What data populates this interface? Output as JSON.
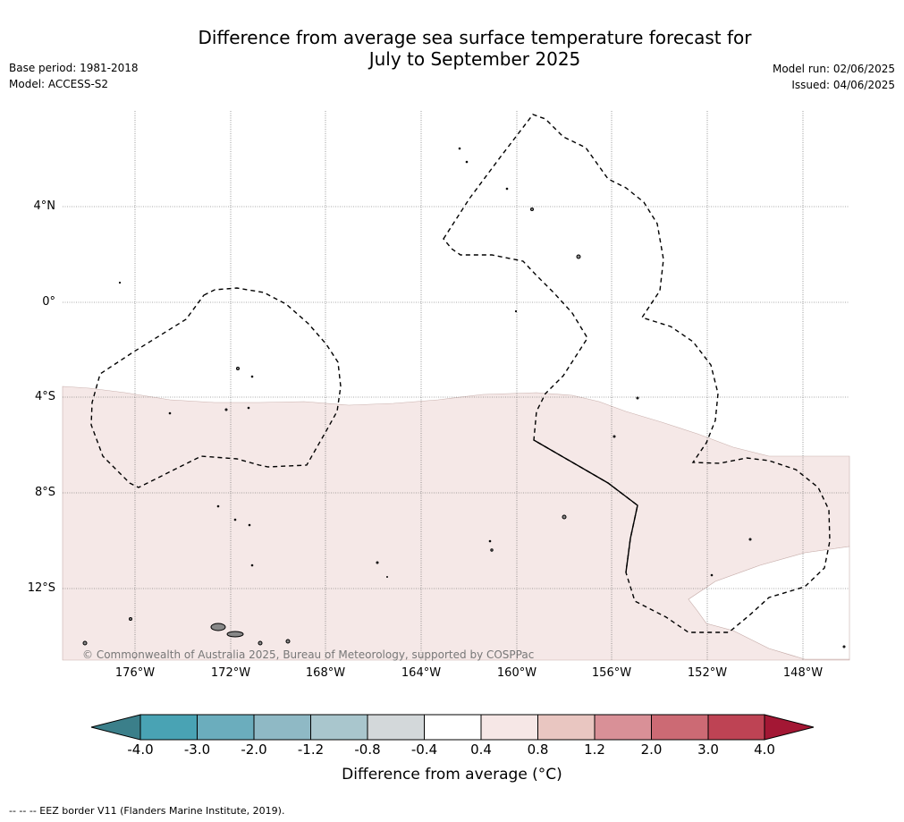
{
  "title_line1": "Difference from average sea surface temperature forecast for",
  "title_line2": "July to September 2025",
  "base_period": "Base period: 1981-2018",
  "model": "Model: ACCESS-S2",
  "model_run": "Model run: 02/06/2025",
  "issued": "Issued: 04/06/2025",
  "lat_labels": [
    "4°N",
    "0°",
    "4°S",
    "8°S",
    "12°S"
  ],
  "lon_labels": [
    "176°W",
    "172°W",
    "168°W",
    "164°W",
    "160°W",
    "156°W",
    "152°W",
    "148°W"
  ],
  "copyright": "© Commonwealth of Australia 2025, Bureau of Meteorology, supported by COSPPac",
  "colorbar": {
    "title": "Difference from average (°C)",
    "ticks": [
      "-4.0",
      "-3.0",
      "-2.0",
      "-1.2",
      "-0.8",
      "-0.4",
      "0.4",
      "0.8",
      "1.2",
      "2.0",
      "3.0",
      "4.0"
    ],
    "colors": [
      "#49a3b4",
      "#6badbd",
      "#8fb9c5",
      "#a9c6cd",
      "#d3d8da",
      "#ffffff",
      "#f6e7e6",
      "#e9c6c1",
      "#d99097",
      "#cc6a74",
      "#be4354"
    ],
    "under_color": "#3b7f8a",
    "over_color": "#a31734"
  },
  "anomaly_fill_color": "#f5e8e7",
  "footnote": "-- -- -- EEZ border V11 (Flanders Marine Institute, 2019)."
}
